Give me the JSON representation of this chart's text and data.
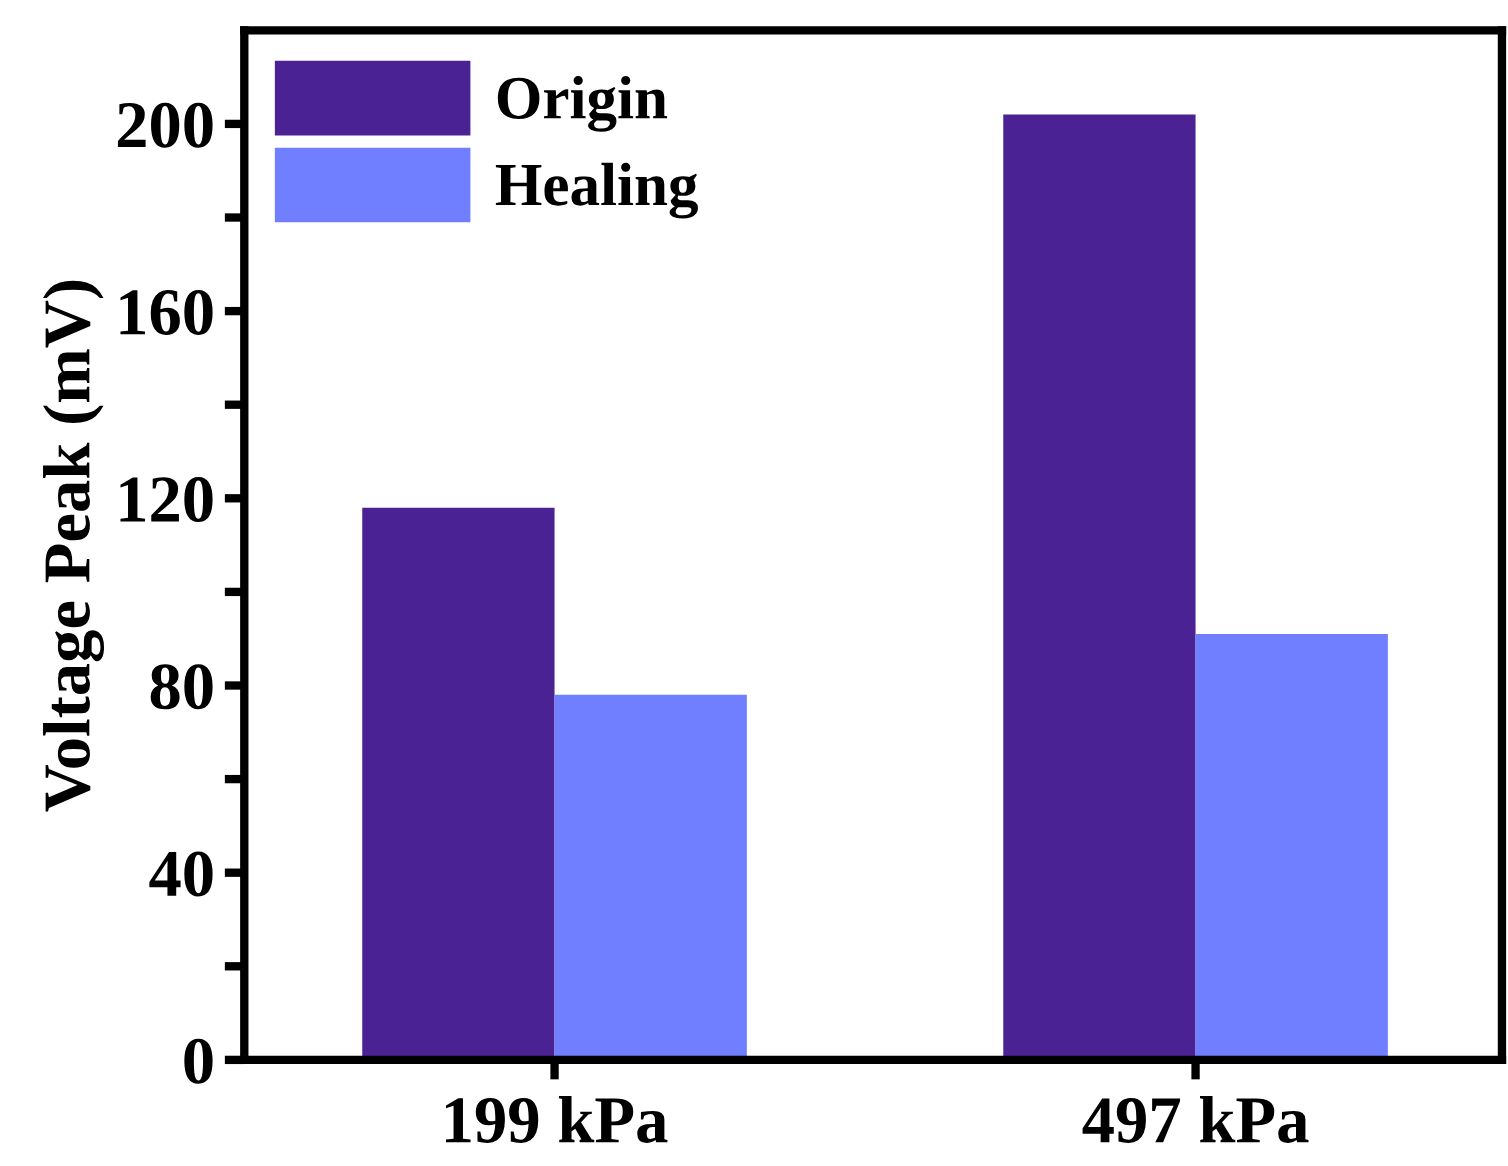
{
  "chart_data": {
    "type": "bar",
    "ylabel": "Voltage Peak (mV)",
    "categories": [
      "199 kPa",
      "497 kPa"
    ],
    "series": [
      {
        "name": "Origin",
        "color": "#4b2293",
        "values": [
          118,
          202
        ]
      },
      {
        "name": "Healing",
        "color": "#6f7fff",
        "values": [
          78,
          91
        ]
      }
    ],
    "ylim": [
      0,
      220
    ],
    "yticks": [
      0,
      {
        "value": 20,
        "label": null
      },
      40,
      {
        "value": 60,
        "label": null
      },
      80,
      {
        "value": 100,
        "label": null
      },
      120,
      {
        "value": 140,
        "label": null
      },
      160,
      {
        "value": 180,
        "label": null
      },
      200
    ],
    "grid": false,
    "legend": "top left"
  }
}
